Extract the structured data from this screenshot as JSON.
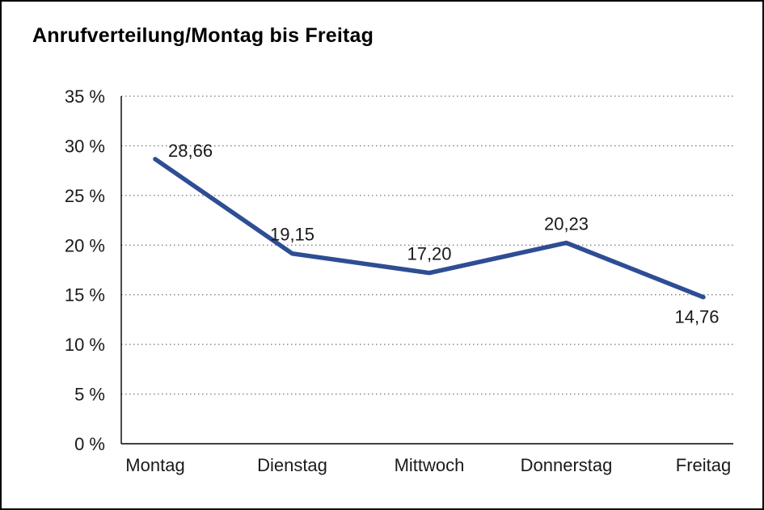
{
  "chart_data": {
    "type": "line",
    "title": "Anrufverteilung/Montag bis Freitag",
    "categories": [
      "Montag",
      "Dienstag",
      "Mittwoch",
      "Donnerstag",
      "Freitag"
    ],
    "values": [
      28.66,
      19.15,
      17.2,
      20.23,
      14.76
    ],
    "value_labels": [
      "28,66",
      "19,15",
      "17,20",
      "20,23",
      "14,76"
    ],
    "label_positions": [
      "right",
      "above",
      "above",
      "above",
      "below"
    ],
    "xlabel": "",
    "ylabel": "",
    "ylim": [
      0,
      35
    ],
    "yticks": [
      0,
      5,
      10,
      15,
      20,
      25,
      30,
      35
    ],
    "ytick_labels": [
      "0 %",
      "5 %",
      "10 %",
      "15 %",
      "20 %",
      "25 %",
      "30 %",
      "35 %"
    ],
    "grid": "dotted-horizontal",
    "legend": "none",
    "line_color": "#2e4d94",
    "axis_color": "#000000",
    "grid_color": "#555555"
  }
}
